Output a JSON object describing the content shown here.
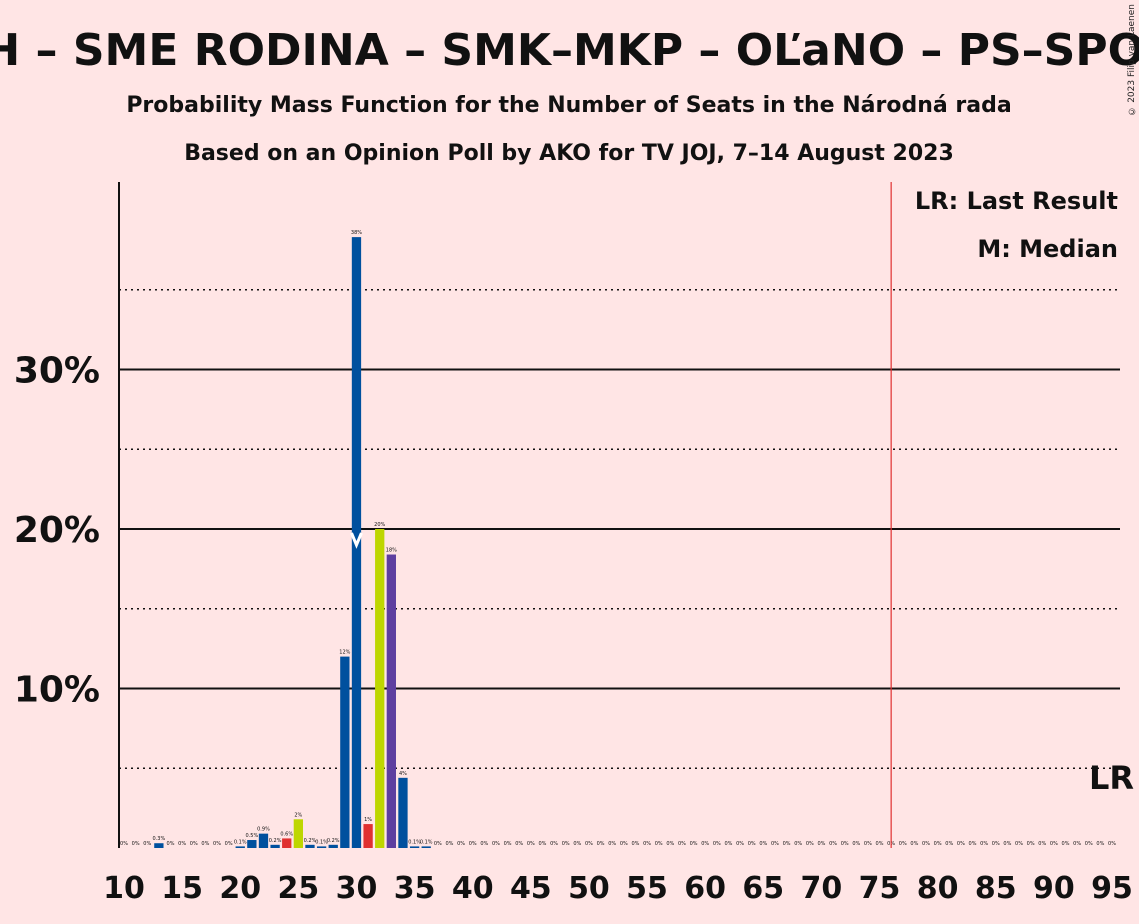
{
  "title": "KDH – SME RODINA – SMK–MKP – OĽaNO – PS–SPOLU",
  "subtitle1": "Probability Mass Function for the Number of Seats in the Národná rada",
  "subtitle2": "Based on an Opinion Poll by AKO for TV JOJ, 7–14 August 2023",
  "copyright": "© 2023 Filip van Laenen",
  "legend": {
    "lr": "LR: Last Result",
    "m": "M: Median"
  },
  "lr_marker_label": "LR",
  "median_marker_label": "M",
  "colors": {
    "background": "#FFE5E5",
    "blue": "#00509E",
    "red": "#E03030",
    "yellowgreen": "#BED600",
    "purple": "#5E3FA0",
    "last_result_line": "#E03030"
  },
  "chart_data": {
    "type": "bar",
    "x_range": [
      10,
      95
    ],
    "y_range": [
      0,
      40
    ],
    "x_ticks": [
      10,
      15,
      20,
      25,
      30,
      35,
      40,
      45,
      50,
      55,
      60,
      65,
      70,
      75,
      80,
      85,
      90,
      95
    ],
    "x_tick_labels": [
      "10",
      "15",
      "20",
      "25",
      "30",
      "35",
      "40",
      "45",
      "50",
      "55",
      "60",
      "65",
      "70",
      "75",
      "80",
      "85",
      "90",
      "95"
    ],
    "y_ticks_labeled": [
      10,
      20,
      30
    ],
    "y_tick_labels": [
      "10%",
      "20%",
      "30%"
    ],
    "y_gridlines_solid": [
      10,
      20,
      30
    ],
    "y_gridlines_dotted": [
      5,
      15,
      25,
      35
    ],
    "last_result": 76,
    "median": 30,
    "bars": [
      {
        "x": 10,
        "value": 0,
        "label": "0%",
        "color": "blue"
      },
      {
        "x": 11,
        "value": 0,
        "label": "0%",
        "color": "blue"
      },
      {
        "x": 12,
        "value": 0,
        "label": "0%",
        "color": "blue"
      },
      {
        "x": 13,
        "value": 0.3,
        "label": "0.3%",
        "color": "blue"
      },
      {
        "x": 14,
        "value": 0,
        "label": "0%",
        "color": "blue"
      },
      {
        "x": 15,
        "value": 0,
        "label": "0%",
        "color": "blue"
      },
      {
        "x": 16,
        "value": 0,
        "label": "0%",
        "color": "blue"
      },
      {
        "x": 17,
        "value": 0,
        "label": "0%",
        "color": "blue"
      },
      {
        "x": 18,
        "value": 0,
        "label": "0%",
        "color": "blue"
      },
      {
        "x": 19,
        "value": 0,
        "label": "0%",
        "color": "blue"
      },
      {
        "x": 20,
        "value": 0.1,
        "label": "0.1%",
        "color": "blue"
      },
      {
        "x": 21,
        "value": 0.5,
        "label": "0.5%",
        "color": "blue"
      },
      {
        "x": 22,
        "value": 0.9,
        "label": "0.9%",
        "color": "blue"
      },
      {
        "x": 23,
        "value": 0.2,
        "label": "0.2%",
        "color": "blue"
      },
      {
        "x": 24,
        "value": 0.6,
        "label": "0.6%",
        "color": "red"
      },
      {
        "x": 25,
        "value": 1.8,
        "label": "2%",
        "color": "yellowgreen"
      },
      {
        "x": 26,
        "value": 0.2,
        "label": "0.2%",
        "color": "blue"
      },
      {
        "x": 27,
        "value": 0.1,
        "label": "0.1%",
        "color": "blue"
      },
      {
        "x": 28,
        "value": 0.2,
        "label": "0.2%",
        "color": "blue"
      },
      {
        "x": 29,
        "value": 12,
        "label": "12%",
        "color": "blue"
      },
      {
        "x": 30,
        "value": 38.3,
        "label": "38%",
        "color": "blue"
      },
      {
        "x": 31,
        "value": 1.5,
        "label": "1%",
        "color": "red"
      },
      {
        "x": 32,
        "value": 20,
        "label": "20%",
        "color": "yellowgreen"
      },
      {
        "x": 33,
        "value": 18.4,
        "label": "18%",
        "color": "purple"
      },
      {
        "x": 34,
        "value": 4.4,
        "label": "4%",
        "color": "blue"
      },
      {
        "x": 35,
        "value": 0.1,
        "label": "0.1%",
        "color": "blue"
      },
      {
        "x": 36,
        "value": 0.1,
        "label": "0.1%",
        "color": "blue"
      },
      {
        "x": 37,
        "value": 0,
        "label": "0%",
        "color": "blue"
      },
      {
        "x": 38,
        "value": 0,
        "label": "0%",
        "color": "blue"
      },
      {
        "x": 39,
        "value": 0,
        "label": "0%",
        "color": "blue"
      },
      {
        "x": 40,
        "value": 0,
        "label": "0%",
        "color": "blue"
      },
      {
        "x": 41,
        "value": 0,
        "label": "0%",
        "color": "blue"
      },
      {
        "x": 42,
        "value": 0,
        "label": "0%",
        "color": "blue"
      },
      {
        "x": 43,
        "value": 0,
        "label": "0%",
        "color": "blue"
      },
      {
        "x": 44,
        "value": 0,
        "label": "0%",
        "color": "blue"
      },
      {
        "x": 45,
        "value": 0,
        "label": "0%",
        "color": "blue"
      },
      {
        "x": 46,
        "value": 0,
        "label": "0%",
        "color": "blue"
      },
      {
        "x": 47,
        "value": 0,
        "label": "0%",
        "color": "blue"
      },
      {
        "x": 48,
        "value": 0,
        "label": "0%",
        "color": "blue"
      },
      {
        "x": 49,
        "value": 0,
        "label": "0%",
        "color": "blue"
      },
      {
        "x": 50,
        "value": 0,
        "label": "0%",
        "color": "blue"
      },
      {
        "x": 51,
        "value": 0,
        "label": "0%",
        "color": "blue"
      },
      {
        "x": 52,
        "value": 0,
        "label": "0%",
        "color": "blue"
      },
      {
        "x": 53,
        "value": 0,
        "label": "0%",
        "color": "blue"
      },
      {
        "x": 54,
        "value": 0,
        "label": "0%",
        "color": "blue"
      },
      {
        "x": 55,
        "value": 0,
        "label": "0%",
        "color": "blue"
      },
      {
        "x": 56,
        "value": 0,
        "label": "0%",
        "color": "blue"
      },
      {
        "x": 57,
        "value": 0,
        "label": "0%",
        "color": "blue"
      },
      {
        "x": 58,
        "value": 0,
        "label": "0%",
        "color": "blue"
      },
      {
        "x": 59,
        "value": 0,
        "label": "0%",
        "color": "blue"
      },
      {
        "x": 60,
        "value": 0,
        "label": "0%",
        "color": "blue"
      },
      {
        "x": 61,
        "value": 0,
        "label": "0%",
        "color": "blue"
      },
      {
        "x": 62,
        "value": 0,
        "label": "0%",
        "color": "blue"
      },
      {
        "x": 63,
        "value": 0,
        "label": "0%",
        "color": "blue"
      },
      {
        "x": 64,
        "value": 0,
        "label": "0%",
        "color": "blue"
      },
      {
        "x": 65,
        "value": 0,
        "label": "0%",
        "color": "blue"
      },
      {
        "x": 66,
        "value": 0,
        "label": "0%",
        "color": "blue"
      },
      {
        "x": 67,
        "value": 0,
        "label": "0%",
        "color": "blue"
      },
      {
        "x": 68,
        "value": 0,
        "label": "0%",
        "color": "blue"
      },
      {
        "x": 69,
        "value": 0,
        "label": "0%",
        "color": "blue"
      },
      {
        "x": 70,
        "value": 0,
        "label": "0%",
        "color": "blue"
      },
      {
        "x": 71,
        "value": 0,
        "label": "0%",
        "color": "blue"
      },
      {
        "x": 72,
        "value": 0,
        "label": "0%",
        "color": "blue"
      },
      {
        "x": 73,
        "value": 0,
        "label": "0%",
        "color": "blue"
      },
      {
        "x": 74,
        "value": 0,
        "label": "0%",
        "color": "blue"
      },
      {
        "x": 75,
        "value": 0,
        "label": "0%",
        "color": "blue"
      },
      {
        "x": 76,
        "value": 0,
        "label": "0%",
        "color": "blue"
      },
      {
        "x": 77,
        "value": 0,
        "label": "0%",
        "color": "blue"
      },
      {
        "x": 78,
        "value": 0,
        "label": "0%",
        "color": "blue"
      },
      {
        "x": 79,
        "value": 0,
        "label": "0%",
        "color": "blue"
      },
      {
        "x": 80,
        "value": 0,
        "label": "0%",
        "color": "blue"
      },
      {
        "x": 81,
        "value": 0,
        "label": "0%",
        "color": "blue"
      },
      {
        "x": 82,
        "value": 0,
        "label": "0%",
        "color": "blue"
      },
      {
        "x": 83,
        "value": 0,
        "label": "0%",
        "color": "blue"
      },
      {
        "x": 84,
        "value": 0,
        "label": "0%",
        "color": "blue"
      },
      {
        "x": 85,
        "value": 0,
        "label": "0%",
        "color": "blue"
      },
      {
        "x": 86,
        "value": 0,
        "label": "0%",
        "color": "blue"
      },
      {
        "x": 87,
        "value": 0,
        "label": "0%",
        "color": "blue"
      },
      {
        "x": 88,
        "value": 0,
        "label": "0%",
        "color": "blue"
      },
      {
        "x": 89,
        "value": 0,
        "label": "0%",
        "color": "blue"
      },
      {
        "x": 90,
        "value": 0,
        "label": "0%",
        "color": "blue"
      },
      {
        "x": 91,
        "value": 0,
        "label": "0%",
        "color": "blue"
      },
      {
        "x": 92,
        "value": 0,
        "label": "0%",
        "color": "blue"
      },
      {
        "x": 93,
        "value": 0,
        "label": "0%",
        "color": "blue"
      },
      {
        "x": 94,
        "value": 0,
        "label": "0%",
        "color": "blue"
      },
      {
        "x": 95,
        "value": 0,
        "label": "0%",
        "color": "blue"
      }
    ]
  }
}
